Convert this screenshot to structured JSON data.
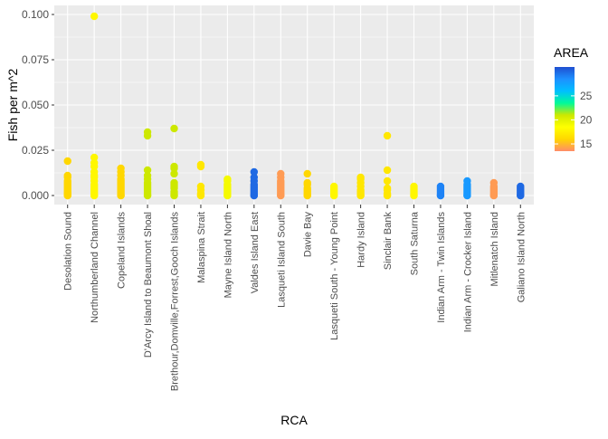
{
  "chart_data": {
    "type": "scatter",
    "title": "",
    "xlabel": "RCA",
    "ylabel": "Fish per m^2",
    "ylim": [
      -0.005,
      0.105
    ],
    "yticks": [
      0.0,
      0.025,
      0.05,
      0.075,
      0.1
    ],
    "ytick_labels": [
      "0.000",
      "0.025",
      "0.050",
      "0.075",
      "0.100"
    ],
    "grid": true,
    "categories": [
      "Desolation Sound",
      "Northumberland Channel",
      "Copeland Islands",
      "D'Arcy Island to Beaumont Shoal",
      "Brethour,Domville,Forrest,Gooch Islands",
      "Malaspina Strait",
      "Mayne Island North",
      "Valdes Island East",
      "Lasqueti Island South",
      "Davie Bay",
      "Lasqueti South - Young Point",
      "Hardy Island",
      "Sinclair Bank",
      "South Saturna",
      "Indian Arm - Twin Islands",
      "Indian Arm - Crocker Island",
      "Mitlenatch Island",
      "Galiano Island North"
    ],
    "area": [
      16,
      18,
      16,
      21,
      21,
      17,
      19,
      30,
      14,
      16,
      18,
      17,
      17,
      18,
      29,
      28,
      14,
      30
    ],
    "values": [
      [
        0.0,
        0.0,
        0.0005,
        0.001,
        0.0015,
        0.002,
        0.003,
        0.004,
        0.005,
        0.006,
        0.007,
        0.008,
        0.01,
        0.011,
        0.019
      ],
      [
        0.0,
        0.0,
        0.001,
        0.002,
        0.003,
        0.004,
        0.005,
        0.006,
        0.008,
        0.01,
        0.011,
        0.013,
        0.016,
        0.018,
        0.021,
        0.099
      ],
      [
        0.0,
        0.0,
        0.001,
        0.002,
        0.003,
        0.004,
        0.005,
        0.006,
        0.007,
        0.008,
        0.009,
        0.011,
        0.013,
        0.015
      ],
      [
        0.0,
        0.0,
        0.001,
        0.002,
        0.003,
        0.004,
        0.005,
        0.006,
        0.007,
        0.009,
        0.011,
        0.014,
        0.033,
        0.035
      ],
      [
        0.0,
        0.0,
        0.001,
        0.002,
        0.004,
        0.005,
        0.006,
        0.007,
        0.012,
        0.015,
        0.016,
        0.037
      ],
      [
        0.0,
        0.0,
        0.001,
        0.003,
        0.005,
        0.016,
        0.017
      ],
      [
        0.0,
        0.0,
        0.001,
        0.002,
        0.003,
        0.004,
        0.005,
        0.006,
        0.008,
        0.009
      ],
      [
        0.0,
        0.0,
        0.001,
        0.002,
        0.003,
        0.004,
        0.005,
        0.006,
        0.008,
        0.01,
        0.013
      ],
      [
        0.0,
        0.0,
        0.001,
        0.002,
        0.003,
        0.004,
        0.005,
        0.006,
        0.007,
        0.008,
        0.01,
        0.012
      ],
      [
        0.0,
        0.0,
        0.001,
        0.002,
        0.003,
        0.004,
        0.006,
        0.007,
        0.012
      ],
      [
        0.0,
        0.0,
        0.001,
        0.002,
        0.003,
        0.004,
        0.005
      ],
      [
        0.0,
        0.0,
        0.001,
        0.002,
        0.003,
        0.005,
        0.007,
        0.009,
        0.01
      ],
      [
        0.0,
        0.0,
        0.001,
        0.003,
        0.004,
        0.008,
        0.014,
        0.033
      ],
      [
        0.0,
        0.0,
        0.001,
        0.002,
        0.003,
        0.004,
        0.005
      ],
      [
        0.0,
        0.0,
        0.001,
        0.002,
        0.003,
        0.004,
        0.005
      ],
      [
        0.0,
        0.0,
        0.001,
        0.002,
        0.003,
        0.004,
        0.005,
        0.006,
        0.008
      ],
      [
        0.0,
        0.0,
        0.001,
        0.002,
        0.003,
        0.004,
        0.005,
        0.007
      ],
      [
        0.0,
        0.0,
        0.001,
        0.002,
        0.003,
        0.004,
        0.005
      ]
    ],
    "legend": {
      "title": "AREA",
      "placement": "right",
      "range": [
        13.5,
        31
      ],
      "ticks": [
        15,
        20,
        25
      ],
      "tick_labels": [
        "15",
        "20",
        "25"
      ],
      "colors": [
        "#ff8c69",
        "#ffd700",
        "#ffff00",
        "#cde800",
        "#00fa9a",
        "#00bfff",
        "#1e90ff",
        "#1f4fd0"
      ]
    }
  }
}
